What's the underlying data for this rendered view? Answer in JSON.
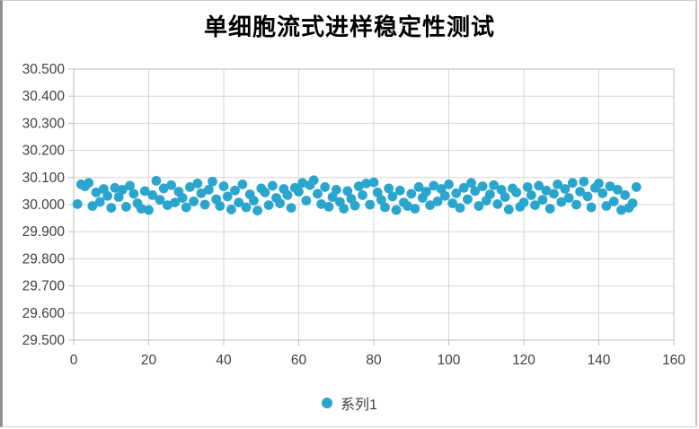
{
  "chart_data": {
    "type": "scatter",
    "title": "单细胞流式进样稳定性测试",
    "xlabel": "",
    "ylabel": "",
    "xlim": [
      0,
      160
    ],
    "ylim": [
      29.5,
      30.5
    ],
    "x_ticks": [
      0,
      20,
      40,
      60,
      80,
      100,
      120,
      140,
      160
    ],
    "x_tick_labels": [
      "0",
      "20",
      "40",
      "60",
      "80",
      "100",
      "120",
      "140",
      "160"
    ],
    "y_ticks": [
      30.5,
      30.4,
      30.3,
      30.2,
      30.1,
      30.0,
      29.9,
      29.8,
      29.7,
      29.6,
      29.5
    ],
    "y_tick_labels": [
      "30.500",
      "30.400",
      "30.300",
      "30.200",
      "30.100",
      "30.000",
      "29.900",
      "29.800",
      "29.700",
      "29.600",
      "29.500"
    ],
    "grid": true,
    "legend_position": "bottom",
    "marker_color": "#2AA6CE",
    "gridline_color": "#d6d6d6",
    "axis_color": "#bfbfbf",
    "tick_text_color": "#3f3f3f",
    "series": [
      {
        "name": "系列1",
        "x_start": 1,
        "x_step": 1,
        "count": 150,
        "y": [
          30.002,
          30.075,
          30.068,
          30.08,
          29.995,
          30.045,
          30.01,
          30.058,
          30.032,
          29.988,
          30.062,
          30.028,
          30.055,
          29.992,
          30.07,
          30.04,
          30.005,
          29.985,
          30.05,
          29.98,
          30.035,
          30.088,
          30.018,
          30.06,
          29.998,
          30.072,
          30.008,
          30.048,
          30.025,
          29.99,
          30.065,
          30.012,
          30.078,
          30.042,
          30.0,
          30.055,
          30.085,
          30.02,
          29.995,
          30.068,
          30.03,
          29.982,
          30.052,
          30.008,
          30.075,
          29.99,
          30.038,
          30.015,
          29.978,
          30.06,
          30.045,
          29.998,
          30.07,
          30.025,
          30.005,
          30.058,
          30.035,
          29.988,
          30.062,
          30.048,
          30.08,
          30.015,
          30.072,
          30.09,
          30.04,
          30.002,
          30.065,
          29.992,
          30.028,
          30.055,
          30.01,
          29.985,
          30.05,
          30.022,
          29.996,
          30.068,
          30.035,
          30.078,
          30.0,
          30.082,
          30.045,
          30.018,
          29.99,
          30.06,
          30.03,
          29.98,
          30.052,
          30.008,
          29.995,
          30.04,
          29.985,
          30.065,
          30.025,
          30.048,
          29.998,
          30.07,
          30.012,
          30.058,
          30.032,
          30.075,
          30.005,
          30.042,
          29.988,
          30.062,
          30.02,
          30.08,
          30.05,
          29.995,
          30.068,
          30.015,
          30.038,
          30.072,
          30.002,
          30.055,
          30.028,
          29.982,
          30.06,
          30.045,
          29.992,
          30.008,
          30.065,
          30.035,
          29.998,
          30.07,
          30.018,
          30.052,
          29.985,
          30.04,
          30.075,
          30.01,
          30.058,
          30.025,
          30.08,
          30.0,
          30.048,
          30.085,
          30.03,
          29.99,
          30.062,
          30.078,
          30.042,
          29.995,
          30.068,
          30.012,
          30.055,
          29.98,
          30.035,
          29.988,
          30.005,
          30.065
        ]
      }
    ]
  }
}
